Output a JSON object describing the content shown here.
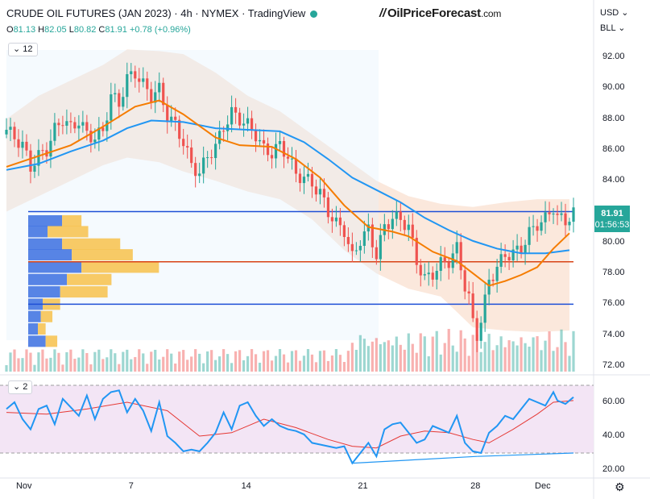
{
  "header": {
    "title": "CRUDE OIL FUTURES (JAN 2023) · 4h · NYMEX · TradingView",
    "open_label": "O",
    "open": "81.13",
    "high_label": "H",
    "high": "82.05",
    "low_label": "L",
    "low": "80.82",
    "close_label": "C",
    "close": "81.91",
    "change": "+0.78 (+0.96%)"
  },
  "brand": {
    "logo_text": "//",
    "name": "OilPriceForecast",
    "suffix": ".com"
  },
  "currency": "USD",
  "unit": "BLL",
  "badges": {
    "main_indicator_count": "12",
    "rsi_indicator_count": "2"
  },
  "price_box": {
    "price": "81.91",
    "countdown": "01:56:53"
  },
  "colors": {
    "up": "#26a69a",
    "down": "#ef5350",
    "ma_fast": "#f57c00",
    "ma_slow": "#2196f3",
    "rsi": "#2196f3",
    "rsi_ma": "#e53935",
    "band": "#f8d6c0",
    "rsi_bg": "#f3e5f5",
    "level": "#1e4fd6"
  },
  "chart_data": {
    "type": "line",
    "title": "CRUDE OIL FUTURES (JAN 2023) · 4h · NYMEX",
    "price_axis": {
      "ticks": [
        "92.00",
        "90.00",
        "88.00",
        "86.00",
        "84.00",
        "82.00",
        "80.00",
        "78.00",
        "76.00",
        "74.00",
        "72.00"
      ],
      "range": [
        71.8,
        93.3
      ]
    },
    "rsi_axis": {
      "ticks": [
        "60.00",
        "40.00",
        "20.00"
      ],
      "range": [
        15,
        75
      ],
      "overbought": 70,
      "oversold": 30
    },
    "x_ticks": [
      {
        "label": "Nov",
        "t": 4
      },
      {
        "label": "7",
        "t": 32
      },
      {
        "label": "14",
        "t": 60
      },
      {
        "label": "21",
        "t": 89
      },
      {
        "label": "28",
        "t": 117
      },
      {
        "label": "Dec",
        "t": 133
      }
    ],
    "close_path": [
      [
        0,
        87.3
      ],
      [
        2,
        86.8
      ],
      [
        4,
        86.3
      ],
      [
        6,
        84.9
      ],
      [
        8,
        85.6
      ],
      [
        10,
        86.0
      ],
      [
        12,
        87.3
      ],
      [
        14,
        88.0
      ],
      [
        16,
        87.4
      ],
      [
        18,
        87.9
      ],
      [
        20,
        87.0
      ],
      [
        22,
        86.8
      ],
      [
        24,
        87.2
      ],
      [
        26,
        89.5
      ],
      [
        28,
        89.0
      ],
      [
        30,
        90.6
      ],
      [
        32,
        91.0
      ],
      [
        34,
        90.2
      ],
      [
        36,
        89.5
      ],
      [
        38,
        89.9
      ],
      [
        40,
        88.2
      ],
      [
        42,
        87.6
      ],
      [
        44,
        86.5
      ],
      [
        46,
        85.0
      ],
      [
        48,
        84.5
      ],
      [
        50,
        85.6
      ],
      [
        52,
        86.2
      ],
      [
        54,
        87.5
      ],
      [
        56,
        88.4
      ],
      [
        58,
        88.0
      ],
      [
        60,
        87.6
      ],
      [
        62,
        87.0
      ],
      [
        64,
        86.0
      ],
      [
        66,
        85.8
      ],
      [
        68,
        86.3
      ],
      [
        70,
        85.6
      ],
      [
        72,
        84.4
      ],
      [
        74,
        84.2
      ],
      [
        76,
        83.8
      ],
      [
        78,
        83.2
      ],
      [
        80,
        82.0
      ],
      [
        82,
        81.2
      ],
      [
        84,
        80.8
      ],
      [
        86,
        79.0
      ],
      [
        88,
        80.2
      ],
      [
        90,
        80.8
      ],
      [
        92,
        79.2
      ],
      [
        94,
        81.0
      ],
      [
        96,
        81.6
      ],
      [
        98,
        81.5
      ],
      [
        100,
        81.0
      ],
      [
        102,
        78.8
      ],
      [
        104,
        77.6
      ],
      [
        106,
        78.0
      ],
      [
        108,
        78.6
      ],
      [
        110,
        78.8
      ],
      [
        112,
        79.6
      ],
      [
        114,
        77.2
      ],
      [
        115,
        76.4
      ],
      [
        116,
        74.8
      ],
      [
        117,
        74.0
      ],
      [
        118,
        75.0
      ],
      [
        119,
        76.2
      ],
      [
        120,
        77.5
      ],
      [
        122,
        78.4
      ],
      [
        124,
        79.2
      ],
      [
        126,
        79.3
      ],
      [
        128,
        79.6
      ],
      [
        130,
        80.6
      ],
      [
        132,
        81.2
      ],
      [
        134,
        81.5
      ],
      [
        136,
        82.3
      ],
      [
        137,
        81.6
      ],
      [
        139,
        81.4
      ],
      [
        141,
        81.91
      ]
    ],
    "ma_fast": [
      [
        0,
        84.9
      ],
      [
        8,
        85.6
      ],
      [
        16,
        86.3
      ],
      [
        24,
        87.5
      ],
      [
        32,
        88.8
      ],
      [
        38,
        89.2
      ],
      [
        44,
        88.3
      ],
      [
        52,
        86.8
      ],
      [
        58,
        86.3
      ],
      [
        66,
        86.2
      ],
      [
        72,
        85.4
      ],
      [
        78,
        84.2
      ],
      [
        84,
        82.4
      ],
      [
        90,
        81.0
      ],
      [
        96,
        80.7
      ],
      [
        100,
        80.4
      ],
      [
        106,
        79.4
      ],
      [
        112,
        78.8
      ],
      [
        116,
        78.0
      ],
      [
        120,
        77.2
      ],
      [
        124,
        77.5
      ],
      [
        128,
        77.9
      ],
      [
        132,
        78.4
      ],
      [
        136,
        79.6
      ],
      [
        140,
        80.6
      ]
    ],
    "ma_slow": [
      [
        0,
        84.7
      ],
      [
        8,
        85.1
      ],
      [
        16,
        85.9
      ],
      [
        24,
        86.6
      ],
      [
        30,
        87.4
      ],
      [
        36,
        87.9
      ],
      [
        44,
        87.8
      ],
      [
        52,
        87.4
      ],
      [
        60,
        87.3
      ],
      [
        68,
        87.2
      ],
      [
        74,
        86.5
      ],
      [
        80,
        85.4
      ],
      [
        86,
        84.2
      ],
      [
        92,
        83.4
      ],
      [
        98,
        82.6
      ],
      [
        104,
        81.6
      ],
      [
        110,
        80.8
      ],
      [
        116,
        80.1
      ],
      [
        122,
        79.6
      ],
      [
        128,
        79.3
      ],
      [
        134,
        79.3
      ],
      [
        140,
        79.5
      ]
    ],
    "band_upper": [
      [
        0,
        88.0
      ],
      [
        8,
        89.5
      ],
      [
        16,
        90.5
      ],
      [
        24,
        91.5
      ],
      [
        30,
        92.5
      ],
      [
        38,
        92.4
      ],
      [
        44,
        92.2
      ],
      [
        52,
        91.0
      ],
      [
        60,
        89.5
      ],
      [
        68,
        88.5
      ],
      [
        76,
        87.0
      ],
      [
        84,
        85.5
      ],
      [
        92,
        84.0
      ],
      [
        100,
        83.0
      ],
      [
        108,
        82.5
      ],
      [
        116,
        82.3
      ],
      [
        124,
        82.6
      ],
      [
        132,
        82.8
      ],
      [
        140,
        82.8
      ]
    ],
    "band_lower": [
      [
        0,
        82.0
      ],
      [
        8,
        83.0
      ],
      [
        16,
        84.0
      ],
      [
        24,
        85.0
      ],
      [
        30,
        85.5
      ],
      [
        38,
        85.2
      ],
      [
        44,
        84.6
      ],
      [
        52,
        84.0
      ],
      [
        60,
        83.3
      ],
      [
        68,
        82.8
      ],
      [
        76,
        81.5
      ],
      [
        84,
        79.5
      ],
      [
        92,
        78.0
      ],
      [
        100,
        77.0
      ],
      [
        108,
        76.5
      ],
      [
        116,
        74.5
      ],
      [
        124,
        74.3
      ],
      [
        132,
        74.2
      ],
      [
        140,
        74.3
      ]
    ],
    "horizontal_levels": [
      {
        "y": 82.0,
        "color": "blue"
      },
      {
        "y": 78.75,
        "color": "red"
      },
      {
        "y": 76.0,
        "color": "blue"
      }
    ],
    "volume_profile": [
      {
        "y": 81.4,
        "volume": 0.55,
        "up": 0.35
      },
      {
        "y": 80.7,
        "volume": 0.62,
        "up": 0.2
      },
      {
        "y": 79.9,
        "volume": 0.95,
        "up": 0.35
      },
      {
        "y": 79.2,
        "volume": 1.08,
        "up": 0.45
      },
      {
        "y": 78.4,
        "volume": 1.35,
        "up": 0.55
      },
      {
        "y": 77.6,
        "volume": 0.86,
        "up": 0.4
      },
      {
        "y": 76.8,
        "volume": 0.82,
        "up": 0.33
      },
      {
        "y": 76.0,
        "volume": 0.33,
        "up": 0.15
      },
      {
        "y": 75.2,
        "volume": 0.25,
        "up": 0.13
      },
      {
        "y": 74.4,
        "volume": 0.18,
        "up": 0.1
      },
      {
        "y": 73.6,
        "volume": 0.3,
        "up": 0.18
      }
    ],
    "rsi_path": [
      [
        0,
        56
      ],
      [
        2,
        60
      ],
      [
        4,
        50
      ],
      [
        6,
        44
      ],
      [
        8,
        56
      ],
      [
        10,
        58
      ],
      [
        12,
        47
      ],
      [
        14,
        62
      ],
      [
        16,
        57
      ],
      [
        18,
        52
      ],
      [
        20,
        64
      ],
      [
        22,
        50
      ],
      [
        24,
        62
      ],
      [
        26,
        66
      ],
      [
        28,
        67
      ],
      [
        30,
        54
      ],
      [
        32,
        62
      ],
      [
        34,
        55
      ],
      [
        36,
        43
      ],
      [
        38,
        60
      ],
      [
        40,
        40
      ],
      [
        42,
        36
      ],
      [
        44,
        31
      ],
      [
        46,
        32
      ],
      [
        48,
        31
      ],
      [
        50,
        36
      ],
      [
        52,
        42
      ],
      [
        54,
        54
      ],
      [
        56,
        44
      ],
      [
        58,
        58
      ],
      [
        60,
        60
      ],
      [
        62,
        52
      ],
      [
        64,
        46
      ],
      [
        66,
        50
      ],
      [
        68,
        46
      ],
      [
        70,
        44
      ],
      [
        72,
        43
      ],
      [
        74,
        41
      ],
      [
        76,
        36
      ],
      [
        78,
        35
      ],
      [
        80,
        34
      ],
      [
        82,
        33
      ],
      [
        84,
        34
      ],
      [
        86,
        24
      ],
      [
        88,
        30
      ],
      [
        90,
        36
      ],
      [
        92,
        28
      ],
      [
        94,
        44
      ],
      [
        96,
        47
      ],
      [
        98,
        48
      ],
      [
        100,
        42
      ],
      [
        102,
        36
      ],
      [
        104,
        38
      ],
      [
        106,
        46
      ],
      [
        108,
        44
      ],
      [
        110,
        42
      ],
      [
        112,
        52
      ],
      [
        114,
        36
      ],
      [
        116,
        31
      ],
      [
        118,
        30
      ],
      [
        120,
        42
      ],
      [
        122,
        46
      ],
      [
        124,
        52
      ],
      [
        126,
        50
      ],
      [
        128,
        56
      ],
      [
        130,
        62
      ],
      [
        132,
        60
      ],
      [
        134,
        58
      ],
      [
        136,
        66
      ],
      [
        137,
        61
      ],
      [
        139,
        59
      ],
      [
        141,
        63
      ]
    ],
    "rsi_ma": [
      [
        0,
        54
      ],
      [
        10,
        53
      ],
      [
        20,
        56
      ],
      [
        30,
        60
      ],
      [
        40,
        55
      ],
      [
        48,
        40
      ],
      [
        56,
        42
      ],
      [
        64,
        50
      ],
      [
        72,
        45
      ],
      [
        80,
        38
      ],
      [
        86,
        34
      ],
      [
        92,
        33
      ],
      [
        98,
        40
      ],
      [
        104,
        43
      ],
      [
        110,
        42
      ],
      [
        116,
        38
      ],
      [
        120,
        36
      ],
      [
        126,
        44
      ],
      [
        132,
        53
      ],
      [
        136,
        60
      ],
      [
        141,
        61
      ]
    ],
    "rsi_divergence_lines": [
      [
        [
          86,
          24
        ],
        [
          117,
          28
        ]
      ],
      [
        [
          117,
          28
        ],
        [
          141,
          30
        ]
      ]
    ]
  }
}
